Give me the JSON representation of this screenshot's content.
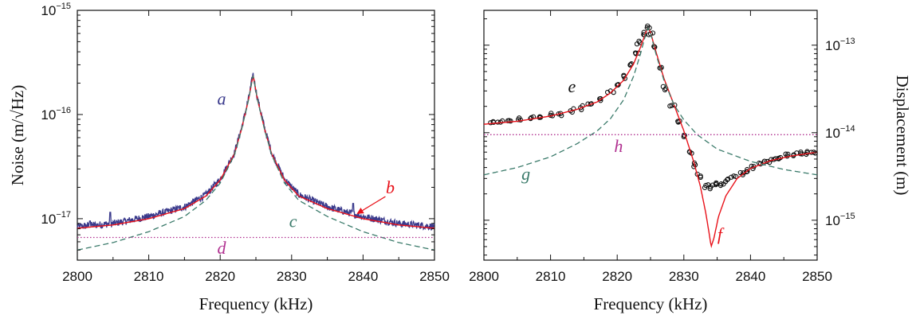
{
  "chart_data": [
    {
      "type": "line",
      "xlabel": "Frequency (kHz)",
      "ylabel": "Noise (m/√Hz)",
      "y_scale": "log",
      "xlim": [
        2800,
        2850
      ],
      "ylim": [
        4e-18,
        1e-15
      ],
      "xticks": [
        "2800",
        "2810",
        "2820",
        "2830",
        "2840",
        "2850"
      ],
      "yticks": [
        {
          "base": "10",
          "exp": "−15",
          "value": 1e-15
        },
        {
          "base": "10",
          "exp": "−16",
          "value": 1e-16
        },
        {
          "base": "10",
          "exp": "−17",
          "value": 1e-17
        }
      ],
      "colors": {
        "measured": "#3a3a8c",
        "fit": "#e8121a",
        "lorentzian": "#3a7a6a",
        "floor": "#b03090"
      },
      "series": [
        {
          "name": "a",
          "style": "noisy-line",
          "x": [
            2800,
            2805,
            2810,
            2815,
            2818,
            2820,
            2822,
            2823,
            2824,
            2824.6,
            2825.2,
            2826.2,
            2827.2,
            2829,
            2831,
            2835,
            2840,
            2845,
            2850
          ],
          "y": [
            8.4e-18,
            9e-18,
            1.05e-17,
            1.3e-17,
            1.7e-17,
            2.4e-17,
            4.3e-17,
            7.5e-17,
            1.45e-16,
            2.45e-16,
            1.45e-16,
            7.5e-17,
            4.3e-17,
            2.4e-17,
            1.7e-17,
            1.3e-17,
            1.05e-17,
            9e-18,
            8.4e-18
          ],
          "spikes": [
            {
              "x": 2801.8,
              "y": 9.5e-18
            },
            {
              "x": 2804.6,
              "y": 1.15e-17
            },
            {
              "x": 2838.6,
              "y": 1.4e-17
            }
          ]
        },
        {
          "name": "b",
          "style": "fit-line",
          "x": [
            2800,
            2805,
            2810,
            2815,
            2818,
            2820,
            2822,
            2823,
            2824,
            2824.6,
            2825.2,
            2826.2,
            2827.2,
            2829,
            2831,
            2835,
            2840,
            2845,
            2850
          ],
          "y": [
            8.1e-18,
            8.7e-18,
            1e-17,
            1.25e-17,
            1.65e-17,
            2.35e-17,
            4.2e-17,
            7.3e-17,
            1.42e-16,
            2.4e-16,
            1.42e-16,
            7.3e-17,
            4.2e-17,
            2.35e-17,
            1.65e-17,
            1.25e-17,
            1e-17,
            8.7e-18,
            8.1e-18
          ]
        },
        {
          "name": "c",
          "style": "dashed",
          "x": [
            2800,
            2805,
            2810,
            2815,
            2818,
            2820,
            2822,
            2823,
            2824,
            2824.6,
            2825.2,
            2826.2,
            2827.2,
            2829,
            2831,
            2835,
            2840,
            2845,
            2850
          ],
          "y": [
            5e-18,
            5.9e-18,
            7.5e-18,
            1.05e-17,
            1.5e-17,
            2.2e-17,
            4.1e-17,
            7.2e-17,
            1.41e-16,
            2.4e-16,
            1.41e-16,
            7.2e-17,
            4.1e-17,
            2.2e-17,
            1.5e-17,
            1.05e-17,
            7.5e-18,
            5.9e-18,
            5e-18
          ]
        },
        {
          "name": "d",
          "style": "dotted",
          "x": [
            2800,
            2850
          ],
          "y": [
            6.6e-18,
            6.6e-18
          ]
        }
      ],
      "labels": [
        {
          "text": "a",
          "x": 2820.2,
          "y": 1.25e-16,
          "color": "#3a3a8c"
        },
        {
          "text": "b",
          "x": 2843.8,
          "y": 1.75e-17,
          "color": "#e8121a",
          "arrow_to": {
            "x": 2839.2,
            "y": 1.12e-17
          }
        },
        {
          "text": "c",
          "x": 2830.2,
          "y": 8.3e-18,
          "color": "#3a7a6a"
        },
        {
          "text": "d",
          "x": 2820.2,
          "y": 4.6e-18,
          "color": "#b03090"
        }
      ]
    },
    {
      "type": "scatter",
      "xlabel": "Frequency (kHz)",
      "ylabel": "Displacement (m)",
      "y_scale": "log",
      "y_axis_side": "right",
      "xlim": [
        2800,
        2850
      ],
      "ylim": [
        3.5e-16,
        2.5e-13
      ],
      "xticks": [
        "2800",
        "2810",
        "2820",
        "2830",
        "2840",
        "2850"
      ],
      "yticks": [
        {
          "base": "10",
          "exp": "−13",
          "value": 1e-13
        },
        {
          "base": "10",
          "exp": "−14",
          "value": 1e-14
        },
        {
          "base": "10",
          "exp": "−15",
          "value": 1e-15
        }
      ],
      "colors": {
        "data": "#111111",
        "fit": "#e8121a",
        "lorentzian": "#3a7a6a",
        "floor": "#b03090"
      },
      "series": [
        {
          "name": "e",
          "style": "open-circles",
          "x": [
            2801,
            2802.5,
            2804,
            2805.5,
            2807,
            2808.5,
            2810,
            2811.5,
            2813,
            2814.5,
            2816,
            2817.5,
            2819,
            2820,
            2821,
            2822,
            2822.8,
            2823.4,
            2824,
            2824.5,
            2825,
            2825.6,
            2826.4,
            2827.3,
            2828.2,
            2829.1,
            2830,
            2830.9,
            2831.7,
            2832.5,
            2833.3,
            2834,
            2834.8,
            2835.6,
            2836.5,
            2837.5,
            2838.5,
            2839.5,
            2840.5,
            2841.5,
            2842.5,
            2843.5,
            2844.5,
            2845.5,
            2846.5,
            2847.5,
            2848.5,
            2849.5
          ],
          "y": [
            1.3e-14,
            1.32e-14,
            1.36e-14,
            1.4e-14,
            1.45e-14,
            1.5e-14,
            1.58e-14,
            1.66e-14,
            1.78e-14,
            1.93e-14,
            2.12e-14,
            2.45e-14,
            3e-14,
            3.5e-14,
            4.4e-14,
            6e-14,
            8e-14,
            1.07e-13,
            1.4e-13,
            1.58e-13,
            1.35e-13,
            9.5e-14,
            5.5e-14,
            3.2e-14,
            2.05e-14,
            1.35e-14,
            9e-15,
            6e-15,
            4.3e-15,
            3.2e-15,
            2.5e-15,
            2.4e-15,
            2.55e-15,
            2.6e-15,
            2.9e-15,
            3.2e-15,
            3.5e-15,
            3.8e-15,
            4.1e-15,
            4.4e-15,
            4.7e-15,
            4.95e-15,
            5.2e-15,
            5.4e-15,
            5.6e-15,
            5.75e-15,
            5.9e-15,
            6e-15
          ]
        },
        {
          "name": "f",
          "style": "fit-line",
          "x": [
            2800,
            2805,
            2810,
            2814,
            2817,
            2819,
            2821,
            2822.5,
            2823.5,
            2824.3,
            2824.6,
            2825,
            2825.8,
            2827,
            2828.5,
            2830,
            2831.5,
            2832.5,
            2833.3,
            2833.8,
            2834.1,
            2834.5,
            2835.2,
            2836.3,
            2838,
            2840,
            2843,
            2846,
            2850
          ],
          "y": [
            1.25e-14,
            1.35e-14,
            1.55e-14,
            1.85e-14,
            2.25e-14,
            2.85e-14,
            4e-14,
            6.2e-14,
            9.5e-14,
            1.4e-13,
            1.58e-13,
            1.4e-13,
            8.5e-14,
            4.2e-14,
            2.1e-14,
            1.05e-14,
            4.6e-15,
            2.4e-15,
            1.2e-15,
            7e-16,
            5e-16,
            6.2e-16,
            1.1e-15,
            1.9e-15,
            3e-15,
            3.9e-15,
            4.8e-15,
            5.4e-15,
            6e-15
          ]
        },
        {
          "name": "g",
          "style": "dashed",
          "x": [
            2800,
            2805,
            2810,
            2814,
            2817,
            2819,
            2821,
            2822.5,
            2823.5,
            2824.3,
            2824.6,
            2825,
            2825.8,
            2827,
            2828.5,
            2830,
            2832,
            2835,
            2840,
            2845,
            2850
          ],
          "y": [
            3.3e-15,
            4e-15,
            5.3e-15,
            7.5e-15,
            1.05e-14,
            1.45e-14,
            2.4e-14,
            4.5e-14,
            8e-14,
            1.35e-13,
            1.58e-13,
            1.38e-13,
            8e-14,
            4e-14,
            2.1e-14,
            1.4e-14,
            9.5e-15,
            6.5e-15,
            4.7e-15,
            3.8e-15,
            3.3e-15
          ]
        },
        {
          "name": "h",
          "style": "dotted",
          "x": [
            2800,
            2850
          ],
          "y": [
            9.5e-15,
            9.5e-15
          ]
        }
      ],
      "labels": [
        {
          "text": "e",
          "x": 2813.2,
          "y": 2.9e-14,
          "color": "#111111"
        },
        {
          "text": "f",
          "x": 2835.4,
          "y": 5.9e-16,
          "color": "#e8121a"
        },
        {
          "text": "g",
          "x": 2806.3,
          "y": 2.9e-15,
          "color": "#3a7a6a"
        },
        {
          "text": "h",
          "x": 2820.2,
          "y": 6e-15,
          "color": "#b03090"
        }
      ]
    }
  ]
}
